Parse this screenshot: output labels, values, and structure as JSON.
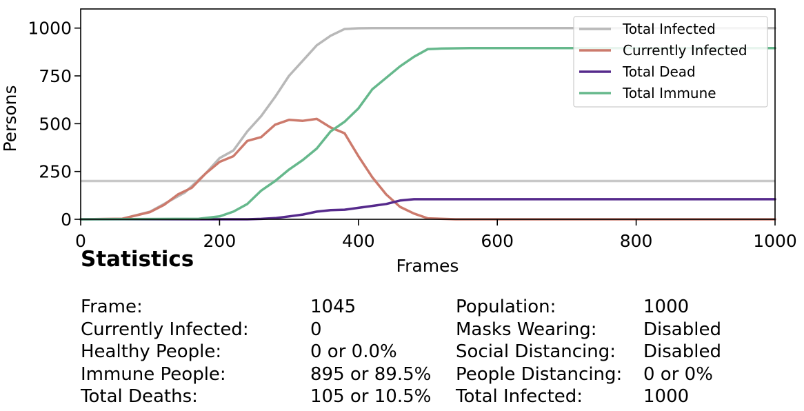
{
  "chart_data": {
    "type": "line",
    "xlabel": "Frames",
    "ylabel": "Persons",
    "xlim": [
      0,
      1000
    ],
    "ylim": [
      0,
      1100
    ],
    "xticks": [
      0,
      200,
      400,
      600,
      800,
      1000
    ],
    "yticks": [
      0,
      250,
      500,
      750,
      1000
    ],
    "legend_position": "top-right",
    "grid": false,
    "reference_line": {
      "y": 200,
      "color": "#c8c8c8"
    },
    "series": [
      {
        "name": "Total Infected",
        "color": "#b8b8b8",
        "x": [
          0,
          60,
          100,
          150,
          180,
          200,
          220,
          240,
          260,
          280,
          300,
          320,
          340,
          360,
          380,
          400,
          420,
          440,
          600,
          800,
          1000
        ],
        "y": [
          0,
          3,
          40,
          140,
          240,
          320,
          360,
          460,
          540,
          640,
          750,
          830,
          910,
          960,
          995,
          999,
          1000,
          1000,
          1000,
          1000,
          1000
        ]
      },
      {
        "name": "Currently Infected",
        "color": "#cc7a6c",
        "x": [
          0,
          60,
          100,
          120,
          140,
          160,
          180,
          200,
          220,
          240,
          260,
          280,
          300,
          320,
          340,
          360,
          380,
          400,
          420,
          440,
          460,
          480,
          500,
          540,
          600,
          800,
          1000
        ],
        "y": [
          0,
          3,
          38,
          75,
          130,
          165,
          240,
          300,
          330,
          410,
          430,
          495,
          520,
          515,
          525,
          480,
          450,
          330,
          220,
          130,
          65,
          30,
          5,
          0,
          0,
          0,
          0
        ]
      },
      {
        "name": "Total Dead",
        "color": "#562a8c",
        "x": [
          0,
          180,
          240,
          260,
          280,
          300,
          320,
          340,
          360,
          380,
          400,
          420,
          440,
          460,
          480,
          500,
          600,
          800,
          1000
        ],
        "y": [
          0,
          0,
          0,
          2,
          6,
          15,
          25,
          40,
          48,
          50,
          60,
          70,
          80,
          98,
          105,
          105,
          105,
          105,
          105
        ]
      },
      {
        "name": "Total Immune",
        "color": "#66b88c",
        "x": [
          0,
          170,
          200,
          220,
          240,
          260,
          280,
          300,
          320,
          340,
          360,
          380,
          400,
          420,
          440,
          460,
          480,
          500,
          520,
          560,
          600,
          800,
          1000
        ],
        "y": [
          0,
          3,
          15,
          40,
          80,
          150,
          200,
          260,
          310,
          370,
          460,
          510,
          580,
          680,
          740,
          800,
          850,
          890,
          893,
          895,
          895,
          895,
          895
        ]
      }
    ]
  },
  "statistics": {
    "title": "Statistics",
    "left": [
      {
        "label": "Frame:",
        "value": "1045"
      },
      {
        "label": "Currently Infected:",
        "value": "0"
      },
      {
        "label": "Healthy People:",
        "value": "0 or 0.0%"
      },
      {
        "label": "Immune People:",
        "value": "895 or 89.5%"
      },
      {
        "label": "Total Deaths:",
        "value": "105 or 10.5%"
      }
    ],
    "right": [
      {
        "label": "Population:",
        "value": "1000"
      },
      {
        "label": "Masks Wearing:",
        "value": "Disabled"
      },
      {
        "label": "Social Distancing:",
        "value": "Disabled"
      },
      {
        "label": "People Distancing:",
        "value": "0 or 0%"
      },
      {
        "label": "Total Infected:",
        "value": "1000"
      }
    ]
  }
}
